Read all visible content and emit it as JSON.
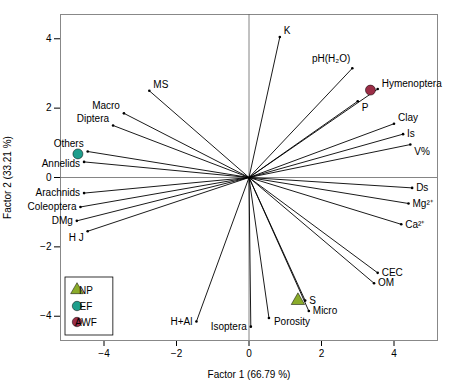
{
  "chart_data": {
    "type": "biplot",
    "xlabel": "Factor 1 (66.79 %)",
    "ylabel": "Factor 2 (33.21 %)",
    "xlim": [
      -5.2,
      5.2
    ],
    "ylim": [
      -4.7,
      4.7
    ],
    "xticks": [
      -4,
      -2,
      0,
      2,
      4
    ],
    "yticks": [
      -4,
      -2,
      0,
      2,
      4
    ],
    "arrows": [
      {
        "name": "K",
        "x": 0.85,
        "y": 4.05
      },
      {
        "name": "pH(H₂O)",
        "x": 2.85,
        "y": 3.15
      },
      {
        "name": "Hymenoptera",
        "x": 3.55,
        "y": 2.55
      },
      {
        "name": "P",
        "x": 3.0,
        "y": 2.2
      },
      {
        "name": "Clay",
        "x": 4.0,
        "y": 1.55
      },
      {
        "name": "Is",
        "x": 4.25,
        "y": 1.25
      },
      {
        "name": "V%",
        "x": 4.45,
        "y": 0.95
      },
      {
        "name": "Ds",
        "x": 4.5,
        "y": -0.3
      },
      {
        "name": "Mg²⁺",
        "x": 4.4,
        "y": -0.75
      },
      {
        "name": "Ca²⁺",
        "x": 4.2,
        "y": -1.35
      },
      {
        "name": "CEC",
        "x": 3.55,
        "y": -2.75
      },
      {
        "name": "OM",
        "x": 3.45,
        "y": -3.05
      },
      {
        "name": "S",
        "x": 1.55,
        "y": -3.55
      },
      {
        "name": "Micro",
        "x": 1.65,
        "y": -3.85
      },
      {
        "name": "Porosity",
        "x": 0.55,
        "y": -4.05
      },
      {
        "name": "Isoptera",
        "x": 0.05,
        "y": -4.3
      },
      {
        "name": "H+Al",
        "x": -1.45,
        "y": -4.15
      },
      {
        "name": "MS",
        "x": -2.75,
        "y": 2.5
      },
      {
        "name": "Macro",
        "x": -3.45,
        "y": 1.85
      },
      {
        "name": "Diptera",
        "x": -3.75,
        "y": 1.5
      },
      {
        "name": "Others",
        "x": -4.45,
        "y": 0.75
      },
      {
        "name": "Annelids",
        "x": -4.55,
        "y": 0.45
      },
      {
        "name": "Arachnids",
        "x": -4.55,
        "y": -0.45
      },
      {
        "name": "Coleoptera",
        "x": -4.65,
        "y": -0.85
      },
      {
        "name": "DMg",
        "x": -4.75,
        "y": -1.25
      },
      {
        "name": "H J",
        "x": -4.45,
        "y": -1.55
      }
    ],
    "series": [
      {
        "name": "NP",
        "color": "#8aab2a",
        "marker": "triangle",
        "x": [
          1.35
        ],
        "y": [
          -3.55
        ]
      },
      {
        "name": "EF",
        "color": "#1e9e8c",
        "marker": "circle",
        "x": [
          -4.72
        ],
        "y": [
          0.68
        ]
      },
      {
        "name": "AWF",
        "color": "#9b2d46",
        "marker": "circle",
        "x": [
          3.35
        ],
        "y": [
          2.52
        ]
      }
    ],
    "legend": "lower left"
  }
}
